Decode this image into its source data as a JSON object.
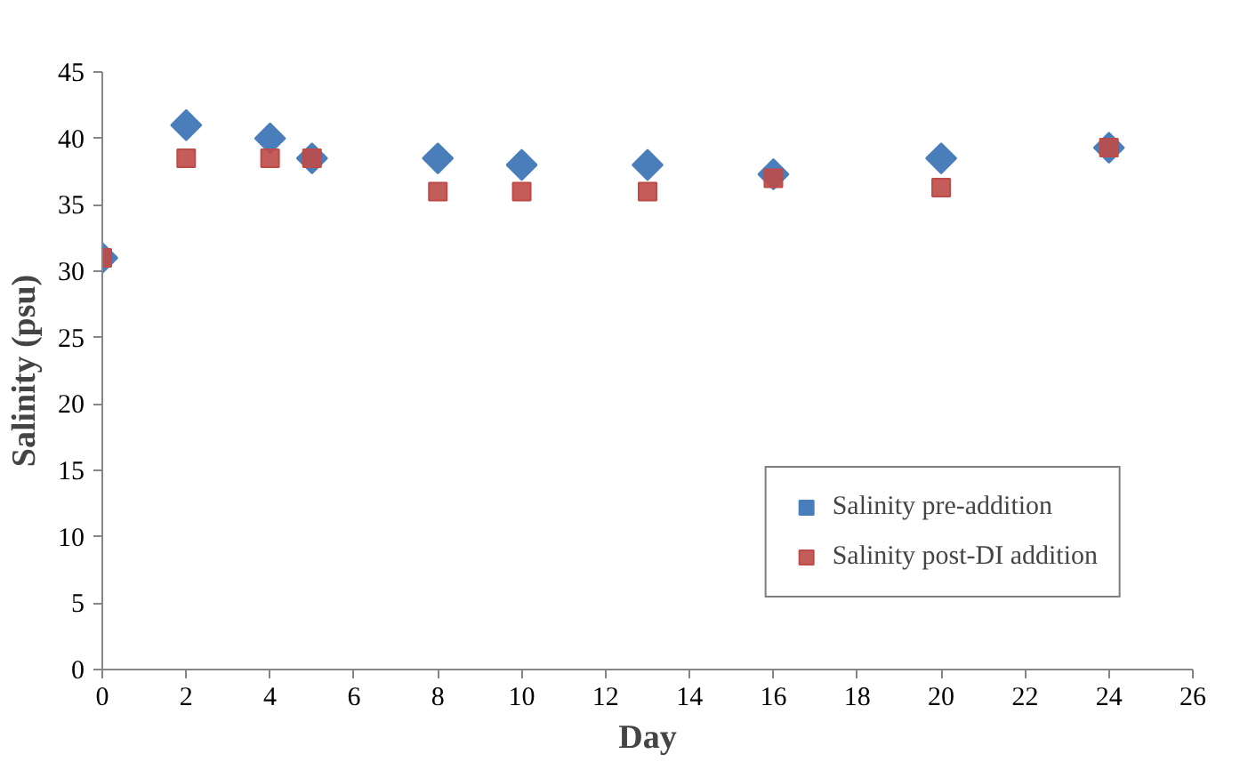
{
  "chart_data": {
    "type": "scatter",
    "xlabel": "Day",
    "ylabel": "Salinity (psu)",
    "xlim": [
      0,
      26
    ],
    "xticks": [
      0,
      2,
      4,
      6,
      8,
      10,
      12,
      14,
      16,
      18,
      20,
      22,
      24,
      26
    ],
    "ylim": [
      0,
      45
    ],
    "yticks": [
      0,
      5,
      10,
      15,
      20,
      25,
      30,
      35,
      40,
      45
    ],
    "grid": false,
    "legend": "bottom right",
    "x": [
      0,
      2,
      4,
      5,
      8,
      10,
      13,
      16,
      20,
      24
    ],
    "series": [
      {
        "name": "Salinity pre-addition",
        "color": "#4a7ebb",
        "marker": "diamond",
        "values": [
          31,
          41,
          40,
          38.5,
          38.5,
          38,
          38,
          37.3,
          38.5,
          39.3
        ]
      },
      {
        "name": "Salinity post-DI addition",
        "color": "#be4b48",
        "marker": "square",
        "values": [
          31,
          38.5,
          38.5,
          38.5,
          36,
          36,
          36,
          37,
          36.3,
          39.3
        ]
      }
    ]
  }
}
